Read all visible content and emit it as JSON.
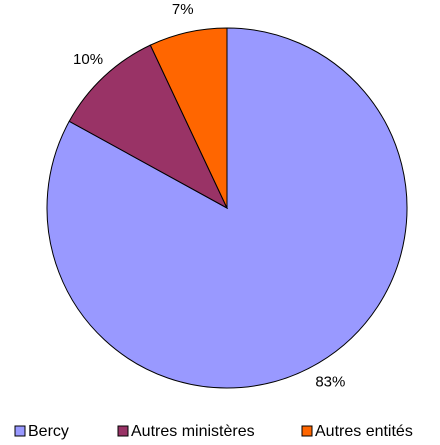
{
  "chart_data": {
    "type": "pie",
    "categories": [
      "Bercy",
      "Autres ministères",
      "Autres entités"
    ],
    "values": [
      83,
      10,
      7
    ],
    "value_labels": [
      "83%",
      "10%",
      "7%"
    ],
    "colors": [
      "#9999ff",
      "#993366",
      "#ff6600"
    ],
    "legend": "bottom"
  }
}
